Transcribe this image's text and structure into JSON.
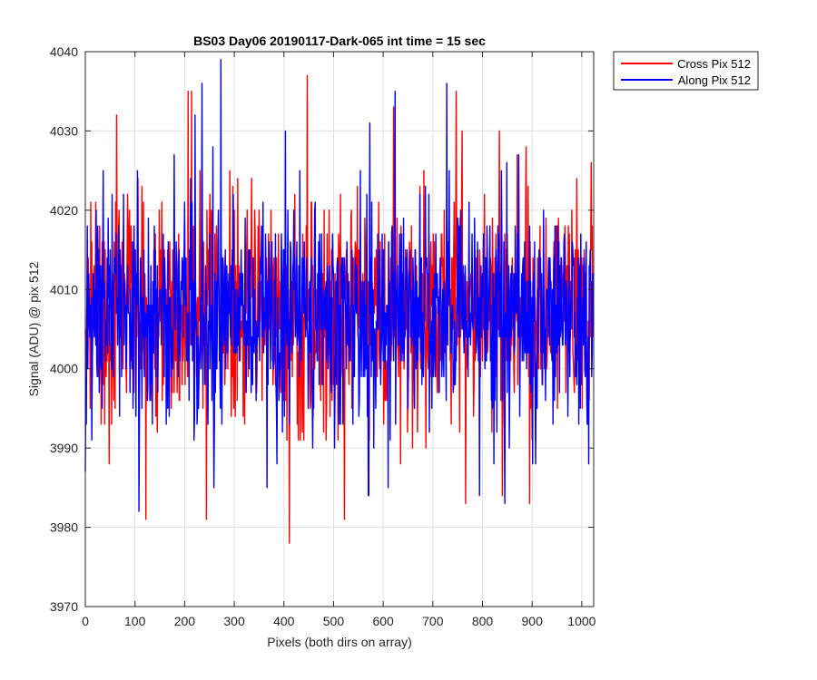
{
  "chart_data": {
    "type": "line",
    "title": "BS03 Day06 20190117-Dark-065 int time = 15 sec",
    "xlabel": "Pixels (both dirs on array)",
    "ylabel": "Signal (ADU) @ pix 512",
    "xlim": [
      0,
      1024
    ],
    "ylim": [
      3970,
      4040
    ],
    "xticks": [
      0,
      100,
      200,
      300,
      400,
      500,
      600,
      700,
      800,
      900,
      1000
    ],
    "yticks": [
      3970,
      3980,
      3990,
      4000,
      4010,
      4020,
      4030,
      4040
    ],
    "grid": true,
    "legend_position": "outside top-right",
    "series": [
      {
        "name": "Cross Pix 512",
        "color": "#ff0000",
        "n_points": 1024,
        "mean": 4007,
        "std": 7,
        "min": 3978,
        "max": 4037,
        "notable_peaks": [
          {
            "x": 63,
            "y": 4032
          },
          {
            "x": 207,
            "y": 4035
          },
          {
            "x": 214,
            "y": 4035
          },
          {
            "x": 447,
            "y": 4037
          },
          {
            "x": 621,
            "y": 4033
          },
          {
            "x": 747,
            "y": 4035
          },
          {
            "x": 1019,
            "y": 4026
          }
        ],
        "notable_troughs": [
          {
            "x": 122,
            "y": 3981
          },
          {
            "x": 244,
            "y": 3981
          },
          {
            "x": 411,
            "y": 3978
          },
          {
            "x": 522,
            "y": 3981
          },
          {
            "x": 840,
            "y": 3984
          },
          {
            "x": 895,
            "y": 3983
          }
        ]
      },
      {
        "name": "Along Pix 512",
        "color": "#0000ff",
        "n_points": 1024,
        "mean": 4007,
        "std": 7,
        "min": 3982,
        "max": 4039,
        "notable_peaks": [
          {
            "x": 235,
            "y": 4036
          },
          {
            "x": 273,
            "y": 4039
          },
          {
            "x": 403,
            "y": 4030
          },
          {
            "x": 624,
            "y": 4035
          },
          {
            "x": 728,
            "y": 4036
          },
          {
            "x": 873,
            "y": 4027
          }
        ],
        "notable_troughs": [
          {
            "x": 108,
            "y": 3982
          },
          {
            "x": 259,
            "y": 3985
          },
          {
            "x": 366,
            "y": 3985
          },
          {
            "x": 571,
            "y": 3984
          },
          {
            "x": 610,
            "y": 3985
          },
          {
            "x": 845,
            "y": 3983
          }
        ]
      }
    ]
  }
}
